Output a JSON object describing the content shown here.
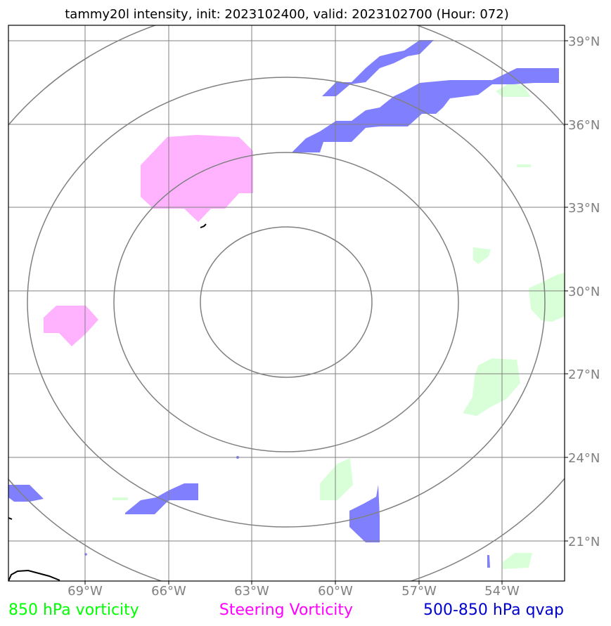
{
  "title": "tammy20l intensity, init: 2023102400, valid: 2023102700 (Hour: 072)",
  "map": {
    "lon_ticks": [
      "69°W",
      "66°W",
      "63°W",
      "60°W",
      "57°W",
      "54°W"
    ],
    "lat_ticks": [
      "39°N",
      "36°N",
      "33°N",
      "30°N",
      "27°N",
      "24°N",
      "21°N"
    ],
    "storm_center": {
      "lon": -61.8,
      "lat": 29.6
    },
    "range_rings": [
      "inner",
      "ring-2",
      "ring-3",
      "outer"
    ],
    "grid": true
  },
  "legend": {
    "vort850": {
      "label": "850 hPa vorticity",
      "color": "#00ff00"
    },
    "steering": {
      "label": "Steering Vorticity",
      "color": "#ff00ff"
    },
    "qvap": {
      "label": "500-850 hPa qvap",
      "color": "#0000cd"
    }
  },
  "fill_colors": {
    "vort850": "#d9ffd9",
    "steering": "#ffb3ff",
    "qvap": "#8080ff"
  }
}
